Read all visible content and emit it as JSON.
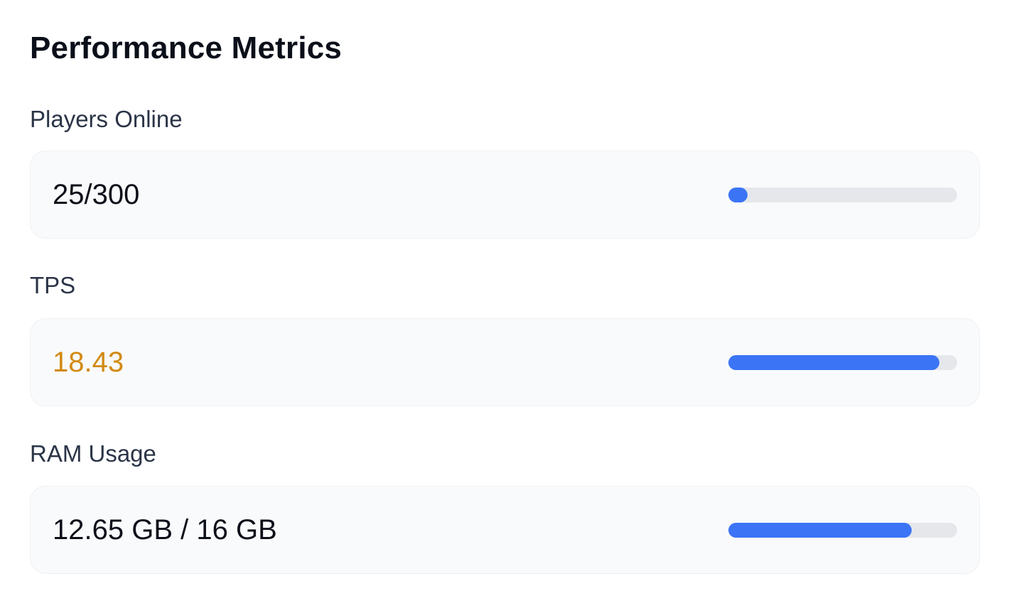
{
  "panel": {
    "title": "Performance Metrics"
  },
  "colors": {
    "progress_fill": "#3b75f6",
    "progress_track": "#e5e7eb",
    "card_background": "#f9fafb",
    "value_default": "#0b0f19",
    "value_warning": "#d28a12"
  },
  "metrics": [
    {
      "label": "Players Online",
      "value": "25/300",
      "progress_fraction": 0.0833,
      "value_color": "#0b0f19"
    },
    {
      "label": "TPS",
      "value": "18.43",
      "progress_fraction": 0.9215,
      "value_color": "#d28a12"
    },
    {
      "label": "RAM Usage",
      "value": "12.65 GB / 16 GB",
      "progress_fraction": 0.8,
      "value_color": "#0b0f19"
    }
  ]
}
